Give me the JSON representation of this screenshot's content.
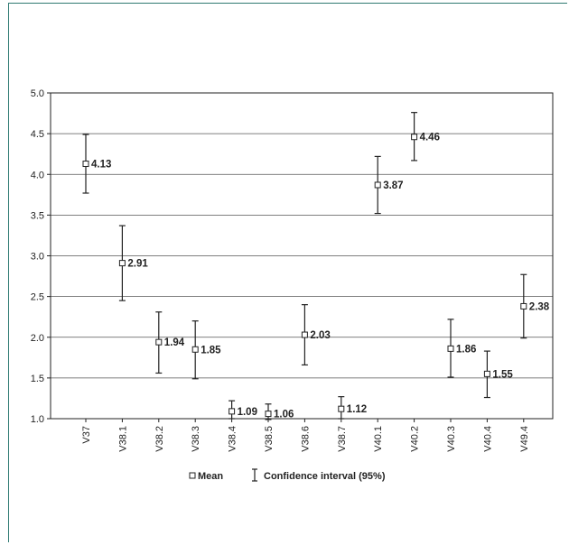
{
  "chart_data": {
    "type": "scatter",
    "title": "",
    "xlabel": "",
    "ylabel": "",
    "categories": [
      "V37",
      "V38.1",
      "V38.2",
      "V38.3",
      "V38.4",
      "V38.5",
      "V38.6",
      "V38.7",
      "V40.1",
      "V40.2",
      "V40.3",
      "V40.4",
      "V49.4"
    ],
    "series": [
      {
        "name": "Mean",
        "values": [
          4.13,
          2.91,
          1.94,
          1.85,
          1.09,
          1.06,
          2.03,
          1.12,
          3.87,
          4.46,
          1.86,
          1.55,
          2.38
        ]
      }
    ],
    "data_labels": [
      "4.13",
      "2.91",
      "1.94",
      "1.85",
      "1.09",
      "1.06",
      "2.03",
      "1.12",
      "3.87",
      "4.46",
      "1.86",
      "1.55",
      "2.38"
    ],
    "ci_low": [
      3.77,
      2.45,
      1.56,
      1.49,
      1.0,
      0.99,
      1.66,
      1.0,
      3.52,
      4.17,
      1.51,
      1.26,
      1.99
    ],
    "ci_high": [
      4.49,
      3.37,
      2.31,
      2.2,
      1.22,
      1.18,
      2.4,
      1.27,
      4.22,
      4.76,
      2.22,
      1.83,
      2.77
    ],
    "ylim": [
      1.0,
      5.0
    ],
    "yticks": [
      "1.0",
      "1.5",
      "2.0",
      "2.5",
      "3.0",
      "3.5",
      "4.0",
      "4.5",
      "5.0"
    ],
    "grid": true,
    "legend_position": "bottom-center",
    "legend": {
      "mean_label": "Mean",
      "ci_label": "Confidence interval (95%)"
    },
    "colors": {
      "frame": "#2f7a72",
      "axis": "#222222",
      "grid": "#444444"
    }
  }
}
